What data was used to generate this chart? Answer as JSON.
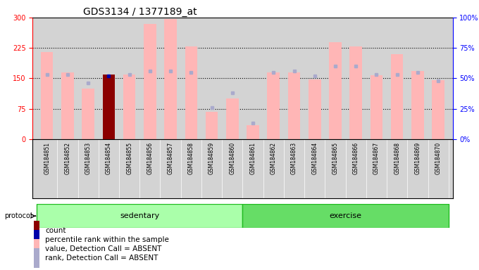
{
  "title": "GDS3134 / 1377189_at",
  "samples": [
    "GSM184851",
    "GSM184852",
    "GSM184853",
    "GSM184854",
    "GSM184855",
    "GSM184856",
    "GSM184857",
    "GSM184858",
    "GSM184859",
    "GSM184860",
    "GSM184861",
    "GSM184862",
    "GSM184863",
    "GSM184864",
    "GSM184865",
    "GSM184866",
    "GSM184867",
    "GSM184868",
    "GSM184869",
    "GSM184870"
  ],
  "values": [
    215,
    165,
    125,
    160,
    160,
    285,
    296,
    228,
    68,
    100,
    35,
    165,
    165,
    148,
    240,
    228,
    158,
    210,
    168,
    145
  ],
  "ranks_pct": [
    53,
    53,
    46,
    52,
    53,
    56,
    56,
    55,
    26,
    38,
    13,
    55,
    56,
    52,
    60,
    60,
    53,
    53,
    55,
    48
  ],
  "count_index": 3,
  "count_value": 160,
  "percentile_rank_value": 52,
  "left_ylim": [
    0,
    300
  ],
  "right_ylim": [
    0,
    100
  ],
  "left_yticks": [
    0,
    75,
    150,
    225,
    300
  ],
  "right_yticks": [
    0,
    25,
    50,
    75,
    100
  ],
  "right_yticklabels": [
    "0%",
    "25%",
    "50%",
    "75%",
    "100%"
  ],
  "bar_color_absent": "#FFB6B6",
  "rank_color_absent": "#AAAACC",
  "count_bar_color": "#8B0000",
  "percentile_rank_color": "#0000AA",
  "sedentary_indices": [
    0,
    9
  ],
  "exercise_indices": [
    10,
    19
  ],
  "protocol_green_light": "#AAFFAA",
  "protocol_green_dark": "#22BB22",
  "protocol_green_mid": "#66DD66",
  "bg_color": "#D3D3D3",
  "legend_items": [
    {
      "label": "count",
      "color": "#8B0000"
    },
    {
      "label": "percentile rank within the sample",
      "color": "#0000AA"
    },
    {
      "label": "value, Detection Call = ABSENT",
      "color": "#FFB6B6"
    },
    {
      "label": "rank, Detection Call = ABSENT",
      "color": "#AAAACC"
    }
  ]
}
